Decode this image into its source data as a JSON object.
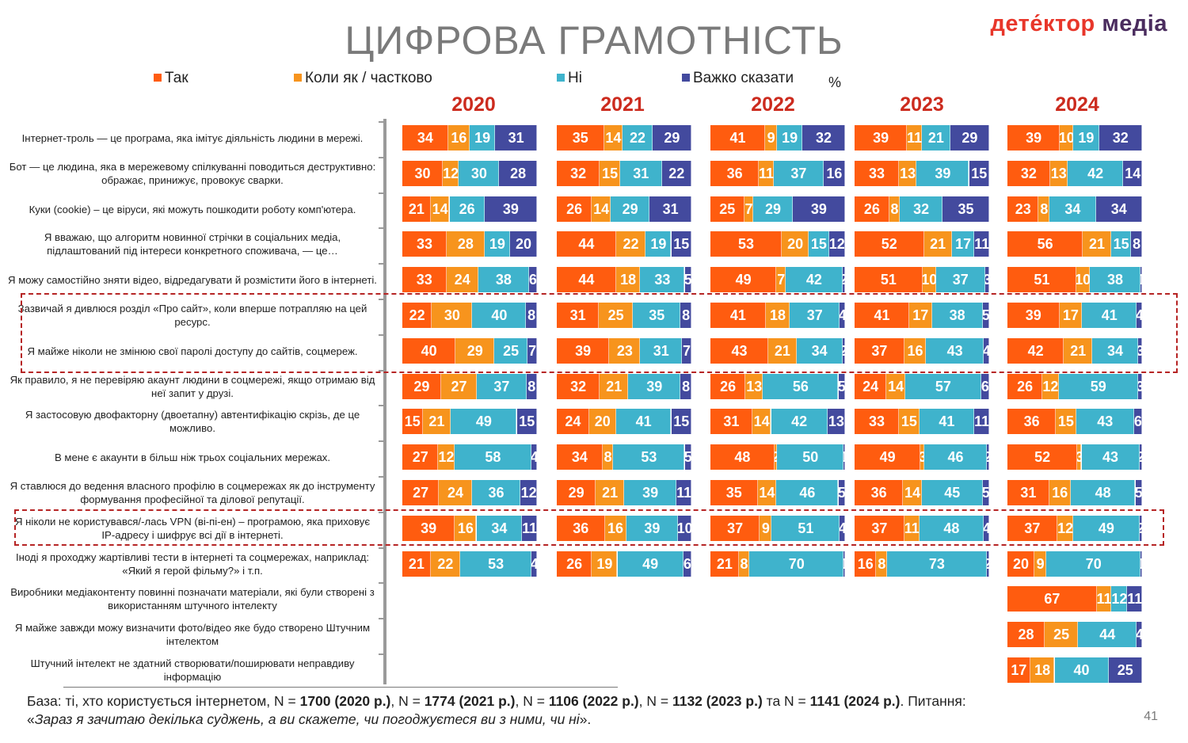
{
  "title": "ЦИФРОВА ГРАМОТНІСТЬ",
  "brand": {
    "part1": "дете́ктор",
    "part2": " медіа"
  },
  "legend": [
    {
      "label": "Так",
      "color": "#ff5c0f"
    },
    {
      "label": "Коли як / частково",
      "color": "#f7941d"
    },
    {
      "label": "Ні",
      "color": "#3fb3cc"
    },
    {
      "label": "Важко сказати",
      "color": "#434a9e"
    }
  ],
  "unit": "%",
  "footnote": {
    "t1": "База: ті, хто користується інтернетом, N = ",
    "b1": "1700 (2020 р.)",
    "t2": ", N = ",
    "b2": "1774 (2021 р.)",
    "t3": ", N = ",
    "b3": "1106 (2022 р.)",
    "t4": ", N = ",
    "b4": "1132 (2023 р.)",
    "t5": " та N = ",
    "b5": "1141 (2024 р.)",
    "t6": ". Питання: «",
    "i1": "Зараз я зачитаю декілька суджень, а ви скажете, чи погоджуєтеся ви з ними, чи ні",
    "t7": "»."
  },
  "page_number": "41",
  "chart_data": {
    "type": "bar",
    "orientation": "horizontal-stacked",
    "unit": "%",
    "years": [
      "2020",
      "2021",
      "2022",
      "2023",
      "2024"
    ],
    "series": [
      "Так",
      "Коли як / частково",
      "Ні",
      "Важко сказати"
    ],
    "colors": [
      "#ff5c0f",
      "#f7941d",
      "#3fb3cc",
      "#434a9e"
    ],
    "highlighted_rows": [
      [
        5,
        6
      ],
      [
        10,
        10
      ]
    ],
    "rows": [
      {
        "label": "Інтернет-троль — це програма, яка імітує діяльність людини в мережі.",
        "values": [
          [
            34,
            16,
            19,
            31
          ],
          [
            35,
            14,
            22,
            29
          ],
          [
            41,
            9,
            19,
            32
          ],
          [
            39,
            11,
            21,
            29
          ],
          [
            39,
            10,
            19,
            32
          ]
        ]
      },
      {
        "label": "Бот — це людина, яка в мережевому спілкуванні поводиться деструктивно: ображає, принижує, провокує сварки.",
        "values": [
          [
            30,
            12,
            30,
            28
          ],
          [
            32,
            15,
            31,
            22
          ],
          [
            36,
            11,
            37,
            16
          ],
          [
            33,
            13,
            39,
            15
          ],
          [
            32,
            13,
            42,
            14
          ]
        ]
      },
      {
        "label": "Куки (cookie) – це віруси, які можуть пошкодити роботу комп'ютера.",
        "values": [
          [
            21,
            14,
            26,
            39
          ],
          [
            26,
            14,
            29,
            31
          ],
          [
            25,
            7,
            29,
            39
          ],
          [
            26,
            8,
            32,
            35
          ],
          [
            23,
            8,
            34,
            34
          ]
        ]
      },
      {
        "label": "Я вважаю, що алгоритм новинної стрічки в соціальних медіа, підлаштований під інтереси конкретного споживача, — це…",
        "values": [
          [
            33,
            28,
            19,
            20
          ],
          [
            44,
            22,
            19,
            15
          ],
          [
            53,
            20,
            15,
            12
          ],
          [
            52,
            21,
            17,
            11
          ],
          [
            56,
            21,
            15,
            8
          ]
        ]
      },
      {
        "label": "Я можу самостійно зняти відео, відредагувати й розмістити його в інтернеті.",
        "values": [
          [
            33,
            24,
            38,
            6
          ],
          [
            44,
            18,
            33,
            5
          ],
          [
            49,
            7,
            42,
            2
          ],
          [
            51,
            10,
            37,
            3
          ],
          [
            51,
            10,
            38,
            1
          ]
        ]
      },
      {
        "label": "Зазвичай я дивлюся розділ «Про сайт», коли вперше потрапляю на цей ресурс.",
        "values": [
          [
            22,
            30,
            40,
            8
          ],
          [
            31,
            25,
            35,
            8
          ],
          [
            41,
            18,
            37,
            4
          ],
          [
            41,
            17,
            38,
            5
          ],
          [
            39,
            17,
            41,
            4
          ]
        ]
      },
      {
        "label": "Я майже ніколи не змінюю свої паролі доступу до сайтів, соцмереж.",
        "values": [
          [
            40,
            29,
            25,
            7
          ],
          [
            39,
            23,
            31,
            7
          ],
          [
            43,
            21,
            34,
            2
          ],
          [
            37,
            16,
            43,
            4
          ],
          [
            42,
            21,
            34,
            3
          ]
        ]
      },
      {
        "label": "Як правило, я не перевіряю акаунт людини в соцмережі, якщо отримаю від неї запит у друзі.",
        "values": [
          [
            29,
            27,
            37,
            8
          ],
          [
            32,
            21,
            39,
            8
          ],
          [
            26,
            13,
            56,
            5
          ],
          [
            24,
            14,
            57,
            6
          ],
          [
            26,
            12,
            59,
            3
          ]
        ]
      },
      {
        "label": "Я застосовую двофакторну (двоетапну) автентифікацію скрізь, де це можливо.",
        "values": [
          [
            15,
            21,
            49,
            15
          ],
          [
            24,
            20,
            41,
            15
          ],
          [
            31,
            14,
            42,
            13
          ],
          [
            33,
            15,
            41,
            11
          ],
          [
            36,
            15,
            43,
            6
          ]
        ]
      },
      {
        "label": "В мене є акаунти в більш ніж трьох соціальних мережах.",
        "values": [
          [
            27,
            12,
            58,
            4
          ],
          [
            34,
            8,
            53,
            5
          ],
          [
            48,
            2,
            50,
            1
          ],
          [
            49,
            3,
            46,
            2
          ],
          [
            52,
            3,
            43,
            2
          ]
        ]
      },
      {
        "label": "Я ставлюся до ведення власного профілю в соцмережах як до інструменту формування професійної та ділової репутації.",
        "values": [
          [
            27,
            24,
            36,
            12
          ],
          [
            29,
            21,
            39,
            11
          ],
          [
            35,
            14,
            46,
            5
          ],
          [
            36,
            14,
            45,
            5
          ],
          [
            31,
            16,
            48,
            5
          ]
        ]
      },
      {
        "label": "Я ніколи не користувався/-лась VPN (ві-пі-ен) – програмою, яка приховує IP-адресу і шифрує всі дії в інтернеті.",
        "values": [
          [
            39,
            16,
            34,
            11
          ],
          [
            36,
            16,
            39,
            10
          ],
          [
            37,
            9,
            51,
            4
          ],
          [
            37,
            11,
            48,
            4
          ],
          [
            37,
            12,
            49,
            2
          ]
        ]
      },
      {
        "label": "Іноді я проходжу жартівливі тести в інтернеті та соцмережах, наприклад: «Який я герой фільму?» і т.п.",
        "values": [
          [
            21,
            22,
            53,
            4
          ],
          [
            26,
            19,
            49,
            6
          ],
          [
            21,
            8,
            70,
            1
          ],
          [
            16,
            8,
            73,
            2
          ],
          [
            20,
            9,
            70,
            1
          ]
        ]
      },
      {
        "label": "Виробники медіаконтенту повинні позначати матеріали, які були створені з використанням штучного інтелекту",
        "values": [
          null,
          null,
          null,
          null,
          [
            67,
            11,
            12,
            11
          ]
        ]
      },
      {
        "label": "Я майже завжди можу визначити фото/відео яке будо створено Штучним інтелектом",
        "values": [
          null,
          null,
          null,
          null,
          [
            28,
            25,
            44,
            4
          ]
        ]
      },
      {
        "label": "Штучний інтелект не здатний створювати/поширювати неправдиву інформацію",
        "values": [
          null,
          null,
          null,
          null,
          [
            17,
            18,
            40,
            25
          ]
        ]
      }
    ]
  }
}
